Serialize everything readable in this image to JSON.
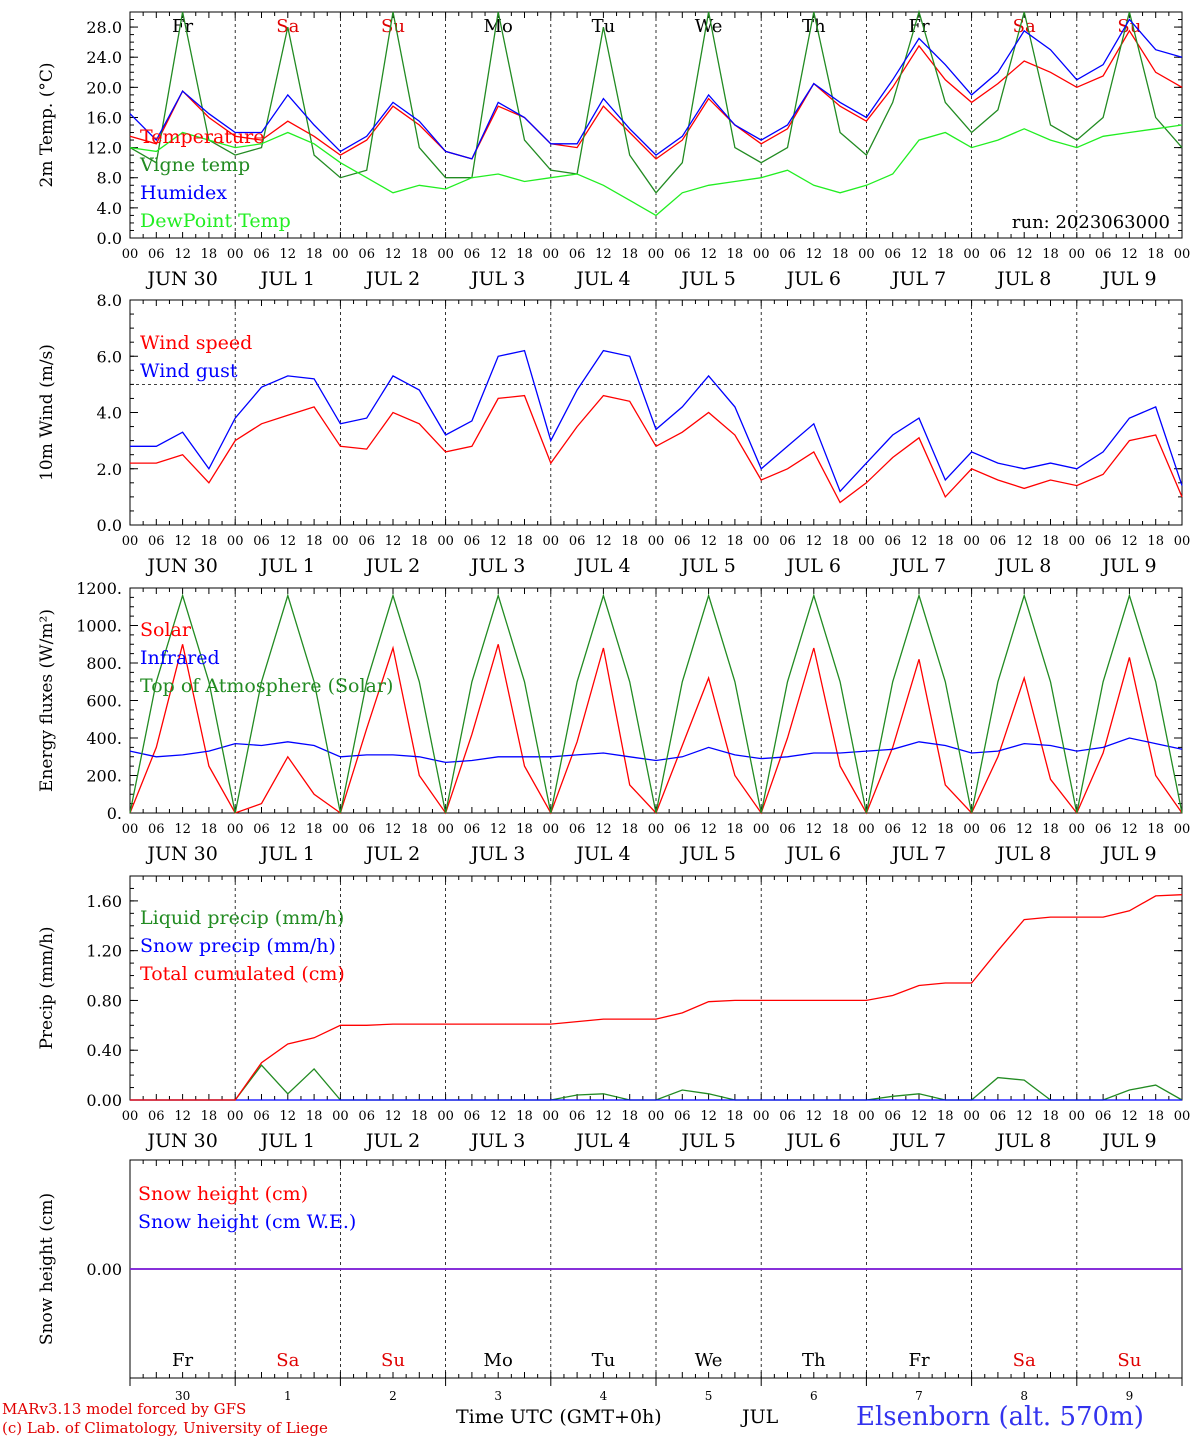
{
  "day_abbr": [
    "Fr",
    "Sa",
    "Su",
    "Mo",
    "Tu",
    "We",
    "Th",
    "Fr",
    "Sa",
    "Su"
  ],
  "day_colors": [
    "#000000",
    "#e00000",
    "#e00000",
    "#000000",
    "#000000",
    "#000000",
    "#000000",
    "#000000",
    "#e00000",
    "#e00000"
  ],
  "date_labels": [
    "JUN 30",
    "JUL  1",
    "JUL  2",
    "JUL  3",
    "JUL  4",
    "JUL  5",
    "JUL  6",
    "JUL  7",
    "JUL  8",
    "JUL  9"
  ],
  "hour_labels": [
    "00",
    "06",
    "12",
    "18"
  ],
  "final_hour_label": "00",
  "bottom_day_numbers": [
    "30",
    "1",
    "2",
    "3",
    "4",
    "5",
    "6",
    "7",
    "8",
    "9"
  ],
  "footer": {
    "model_line": "MARv3.13 model forced by GFS",
    "copyright_line": "(c) Lab. of Climatology, University of Liege",
    "time_axis_label": "Time UTC (GMT+0h)",
    "month_label": "JUL",
    "station": "Elsenborn (alt. 570m)"
  },
  "colors": {
    "red": "#ff0000",
    "darkgreen": "#228b22",
    "blue": "#0000ff",
    "lightgreen": "#22ee22",
    "purple": "#8a2be2"
  },
  "chart_data": [
    {
      "type": "line",
      "ylabel": "2m Temp. (°C)",
      "ylim": [
        0,
        30
      ],
      "yticks": [
        "0.0",
        "4.0",
        "8.0",
        "12.0",
        "16.0",
        "20.0",
        "24.0",
        "28.0"
      ],
      "ytick_values": [
        0,
        4,
        8,
        12,
        16,
        20,
        24,
        28
      ],
      "annotation": "run: 2023063000",
      "x_hours": [
        0,
        6,
        12,
        18,
        24,
        30,
        36,
        42,
        48,
        54,
        60,
        66,
        72,
        78,
        84,
        90,
        96,
        102,
        108,
        114,
        120,
        126,
        132,
        138,
        144,
        150,
        156,
        162,
        168,
        174,
        180,
        186,
        192,
        198,
        204,
        210,
        216,
        222,
        228,
        234,
        240
      ],
      "series": [
        {
          "name": "Temperature",
          "color": "#ff0000",
          "values": [
            13.5,
            12.5,
            19.5,
            16.0,
            13.5,
            13.0,
            15.5,
            13.5,
            11.0,
            13.0,
            17.5,
            15.0,
            11.5,
            10.5,
            17.5,
            16.0,
            12.5,
            12.0,
            17.5,
            14.0,
            10.5,
            13.0,
            18.5,
            15.0,
            12.5,
            14.5,
            20.5,
            17.5,
            15.5,
            20.0,
            25.5,
            21.0,
            18.0,
            20.5,
            23.5,
            22.0,
            20.0,
            21.5,
            27.5,
            22.0,
            20.0
          ]
        },
        {
          "name": "Vigne temp",
          "color": "#228b22",
          "values": [
            12.0,
            10.0,
            30.0,
            13.0,
            11.0,
            12.0,
            28.0,
            11.0,
            8.0,
            9.0,
            30.0,
            12.0,
            8.0,
            8.0,
            30.0,
            13.0,
            9.0,
            8.5,
            28.0,
            11.0,
            6.0,
            10.0,
            30.0,
            12.0,
            10.0,
            12.0,
            30.0,
            14.0,
            11.0,
            18.0,
            30.0,
            18.0,
            14.0,
            17.0,
            30.0,
            15.0,
            13.0,
            16.0,
            30.0,
            16.0,
            12.0
          ]
        },
        {
          "name": "Humidex",
          "color": "#0000ff",
          "values": [
            16.5,
            13.0,
            19.5,
            16.5,
            14.0,
            14.0,
            19.0,
            15.0,
            11.5,
            13.5,
            18.0,
            15.5,
            11.5,
            10.5,
            18.0,
            16.0,
            12.5,
            12.5,
            18.5,
            14.5,
            11.0,
            13.5,
            19.0,
            15.0,
            13.0,
            15.0,
            20.5,
            18.0,
            16.0,
            21.0,
            26.5,
            23.0,
            19.0,
            22.0,
            27.5,
            25.0,
            21.0,
            23.0,
            29.0,
            25.0,
            24.0
          ]
        },
        {
          "name": "DewPoint Temp",
          "color": "#22ee22",
          "values": [
            12.0,
            11.5,
            14.0,
            13.0,
            12.0,
            12.5,
            14.0,
            12.5,
            10.0,
            8.0,
            6.0,
            7.0,
            6.5,
            8.0,
            8.5,
            7.5,
            8.0,
            8.5,
            7.0,
            5.0,
            3.0,
            6.0,
            7.0,
            7.5,
            8.0,
            9.0,
            7.0,
            6.0,
            7.0,
            8.5,
            13.0,
            14.0,
            12.0,
            13.0,
            14.5,
            13.0,
            12.0,
            13.5,
            14.0,
            14.5,
            15.0
          ]
        }
      ]
    },
    {
      "type": "line",
      "ylabel": "10m Wind (m/s)",
      "ylim": [
        0,
        8
      ],
      "yticks": [
        "0.0",
        "2.0",
        "4.0",
        "6.0",
        "8.0"
      ],
      "ytick_values": [
        0,
        2,
        4,
        6,
        8
      ],
      "reference_line": 5,
      "x_hours": [
        0,
        6,
        12,
        18,
        24,
        30,
        36,
        42,
        48,
        54,
        60,
        66,
        72,
        78,
        84,
        90,
        96,
        102,
        108,
        114,
        120,
        126,
        132,
        138,
        144,
        150,
        156,
        162,
        168,
        174,
        180,
        186,
        192,
        198,
        204,
        210,
        216,
        222,
        228,
        234,
        240
      ],
      "series": [
        {
          "name": "Wind speed",
          "color": "#ff0000",
          "values": [
            2.2,
            2.2,
            2.5,
            1.5,
            3.0,
            3.6,
            3.9,
            4.2,
            2.8,
            2.7,
            4.0,
            3.6,
            2.6,
            2.8,
            4.5,
            4.6,
            2.2,
            3.5,
            4.6,
            4.4,
            2.8,
            3.3,
            4.0,
            3.2,
            1.6,
            2.0,
            2.6,
            0.8,
            1.5,
            2.4,
            3.1,
            1.0,
            2.0,
            1.6,
            1.3,
            1.6,
            1.4,
            1.8,
            3.0,
            3.2,
            1.0
          ]
        },
        {
          "name": "Wind gust",
          "color": "#0000ff",
          "values": [
            2.8,
            2.8,
            3.3,
            2.0,
            3.8,
            4.9,
            5.3,
            5.2,
            3.6,
            3.8,
            5.3,
            4.8,
            3.2,
            3.7,
            6.0,
            6.2,
            3.0,
            4.8,
            6.2,
            6.0,
            3.4,
            4.2,
            5.3,
            4.2,
            2.0,
            2.8,
            3.6,
            1.2,
            2.2,
            3.2,
            3.8,
            1.6,
            2.6,
            2.2,
            2.0,
            2.2,
            2.0,
            2.6,
            3.8,
            4.2,
            1.4
          ]
        }
      ]
    },
    {
      "type": "line",
      "ylabel": "Energy fluxes (W/m²)",
      "ylim": [
        0,
        1200
      ],
      "yticks": [
        "0.",
        "200.",
        "400.",
        "600.",
        "800.",
        "1000.",
        "1200."
      ],
      "ytick_values": [
        0,
        200,
        400,
        600,
        800,
        1000,
        1200
      ],
      "x_hours": [
        0,
        6,
        12,
        18,
        24,
        30,
        36,
        42,
        48,
        54,
        60,
        66,
        72,
        78,
        84,
        90,
        96,
        102,
        108,
        114,
        120,
        126,
        132,
        138,
        144,
        150,
        156,
        162,
        168,
        174,
        180,
        186,
        192,
        198,
        204,
        210,
        216,
        222,
        228,
        234,
        240
      ],
      "series": [
        {
          "name": "Solar",
          "color": "#ff0000",
          "values": [
            0,
            350,
            900,
            250,
            0,
            50,
            300,
            100,
            0,
            450,
            880,
            200,
            0,
            420,
            900,
            250,
            0,
            380,
            880,
            150,
            0,
            360,
            720,
            200,
            0,
            400,
            880,
            250,
            0,
            350,
            820,
            150,
            0,
            300,
            720,
            180,
            0,
            320,
            830,
            200,
            0
          ]
        },
        {
          "name": "Infrared",
          "color": "#0000ff",
          "values": [
            330,
            300,
            310,
            330,
            370,
            360,
            380,
            360,
            300,
            310,
            310,
            300,
            270,
            280,
            300,
            300,
            300,
            310,
            320,
            300,
            280,
            300,
            350,
            310,
            290,
            300,
            320,
            320,
            330,
            340,
            380,
            360,
            320,
            330,
            370,
            360,
            330,
            350,
            400,
            370,
            340
          ]
        },
        {
          "name": "Top of Atmosphere (Solar)",
          "color": "#228b22",
          "values": [
            0,
            700,
            1160,
            700,
            0,
            700,
            1160,
            700,
            0,
            700,
            1160,
            700,
            0,
            700,
            1160,
            700,
            0,
            700,
            1160,
            700,
            0,
            700,
            1160,
            700,
            0,
            700,
            1160,
            700,
            0,
            700,
            1160,
            700,
            0,
            700,
            1160,
            700,
            0,
            700,
            1160,
            700,
            0
          ]
        }
      ]
    },
    {
      "type": "line",
      "ylabel": "Precip (mm/h)",
      "ylim": [
        0,
        1.8
      ],
      "yticks": [
        "0.00",
        "0.40",
        "0.80",
        "1.20",
        "1.60"
      ],
      "ytick_values": [
        0,
        0.4,
        0.8,
        1.2,
        1.6
      ],
      "x_hours": [
        0,
        6,
        12,
        18,
        24,
        30,
        36,
        42,
        48,
        54,
        60,
        66,
        72,
        78,
        84,
        90,
        96,
        102,
        108,
        114,
        120,
        126,
        132,
        138,
        144,
        150,
        156,
        162,
        168,
        174,
        180,
        186,
        192,
        198,
        204,
        210,
        216,
        222,
        228,
        234,
        240
      ],
      "series": [
        {
          "name": "Liquid precip (mm/h)",
          "color": "#228b22",
          "values": [
            0,
            0,
            0,
            0,
            0,
            0.28,
            0.05,
            0.25,
            0,
            0,
            0,
            0,
            0,
            0,
            0,
            0,
            0,
            0.04,
            0.05,
            0,
            0,
            0.08,
            0.05,
            0,
            0,
            0,
            0,
            0,
            0,
            0.03,
            0.05,
            0,
            0,
            0.18,
            0.16,
            0,
            0,
            0,
            0.08,
            0.12,
            0
          ]
        },
        {
          "name": "Snow precip (mm/h)",
          "color": "#0000ff",
          "values": [
            0,
            0,
            0,
            0,
            0,
            0,
            0,
            0,
            0,
            0,
            0,
            0,
            0,
            0,
            0,
            0,
            0,
            0,
            0,
            0,
            0,
            0,
            0,
            0,
            0,
            0,
            0,
            0,
            0,
            0,
            0,
            0,
            0,
            0,
            0,
            0,
            0,
            0,
            0,
            0,
            0
          ]
        },
        {
          "name": "Total cumulated (cm)",
          "color": "#ff0000",
          "values": [
            0,
            0,
            0,
            0,
            0,
            0.3,
            0.45,
            0.5,
            0.6,
            0.6,
            0.61,
            0.61,
            0.61,
            0.61,
            0.61,
            0.61,
            0.61,
            0.63,
            0.65,
            0.65,
            0.65,
            0.7,
            0.79,
            0.8,
            0.8,
            0.8,
            0.8,
            0.8,
            0.8,
            0.84,
            0.92,
            0.94,
            0.94,
            1.2,
            1.45,
            1.47,
            1.47,
            1.47,
            1.52,
            1.64,
            1.65
          ]
        }
      ]
    },
    {
      "type": "line",
      "ylabel": "Snow height (cm)",
      "ylim": [
        -1,
        1
      ],
      "yticks": [
        "0.00"
      ],
      "ytick_values": [
        0
      ],
      "x_hours": [
        0,
        240
      ],
      "series": [
        {
          "name": "Snow height (cm)",
          "color": "#ff0000",
          "values": [
            0,
            0
          ]
        },
        {
          "name": "Snow height (cm W.E.)",
          "color": "#0000ff",
          "values": [
            0,
            0
          ]
        }
      ]
    }
  ]
}
